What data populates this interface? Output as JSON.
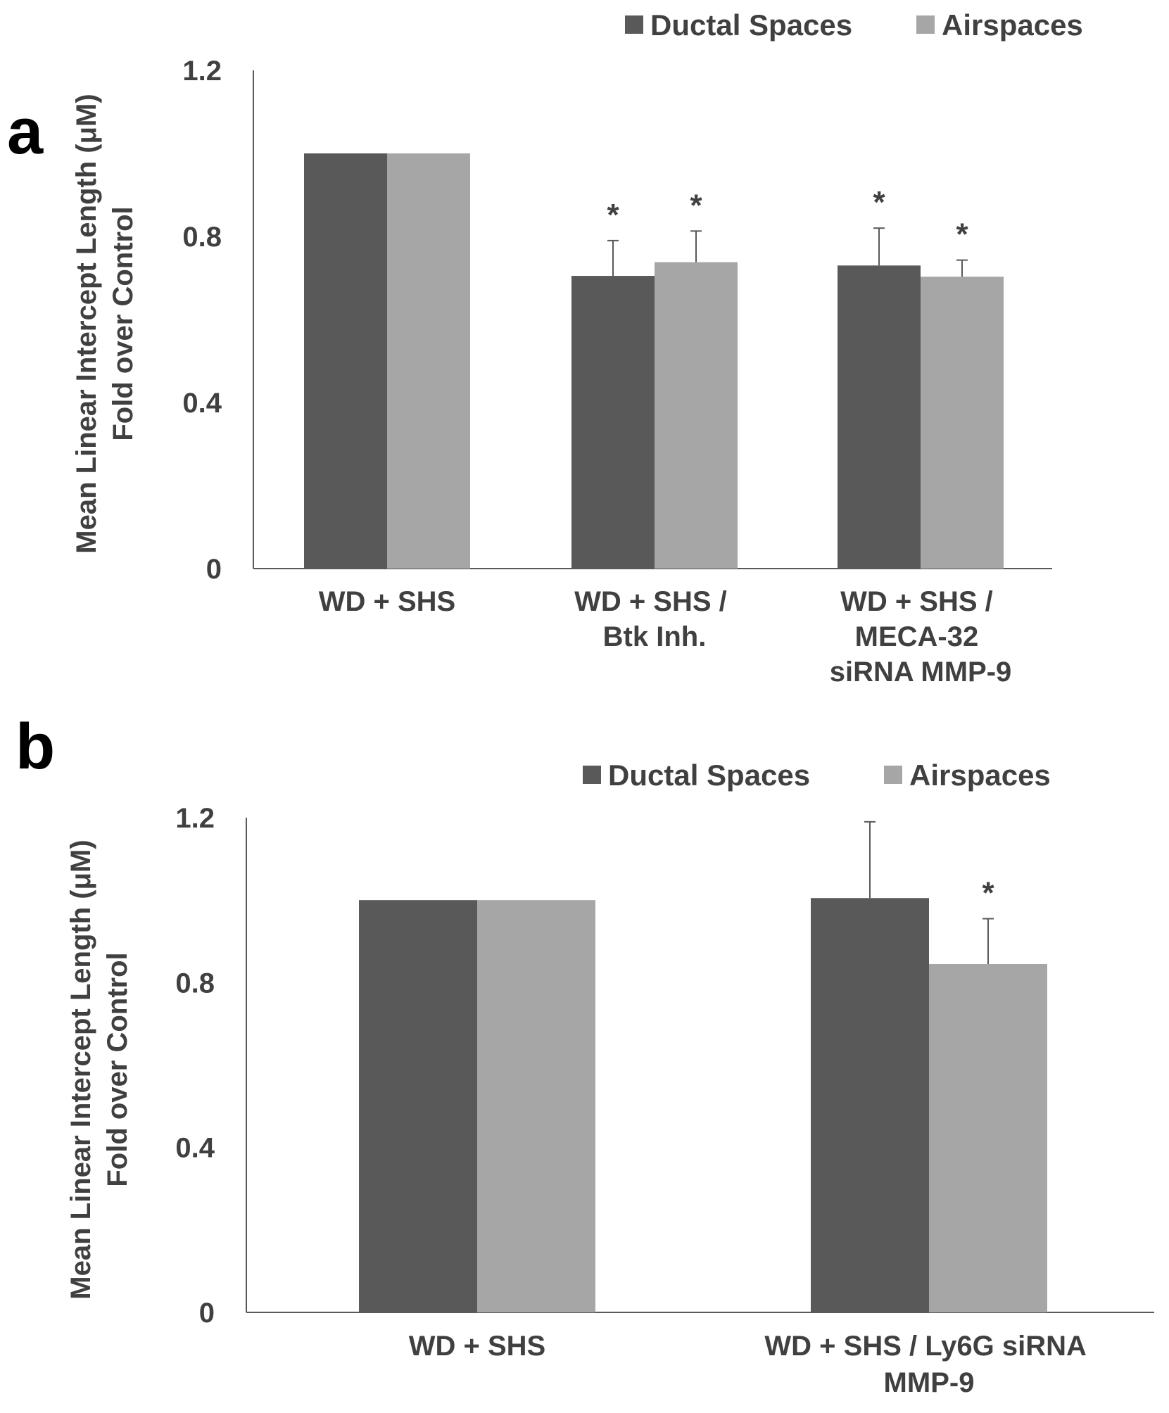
{
  "colors": {
    "ductal": "#595959",
    "airspace": "#a6a6a6",
    "axis": "#595959",
    "text": "#404040"
  },
  "chart_data": [
    {
      "panel": "a",
      "type": "bar",
      "ylabel": [
        "Mean Linear Intercept Length (μM)",
        "Fold over Control"
      ],
      "ylim": [
        0,
        1.2
      ],
      "yticks": [
        "0",
        "0.4",
        "0.8",
        "1.2"
      ],
      "tick_values": [
        0,
        0.4,
        0.8,
        1.2
      ],
      "legend": [
        "Ductal Spaces",
        "Airspaces"
      ],
      "categories": [
        [
          "WD + SHS"
        ],
        [
          "WD + SHS /",
          "Btk Inh."
        ],
        [
          "WD + SHS /",
          "MECA-32",
          "siRNA MMP-9"
        ]
      ],
      "series": [
        {
          "name": "Ductal Spaces",
          "values": [
            1.0,
            0.705,
            0.73
          ],
          "errors": [
            0,
            0.085,
            0.09
          ],
          "significance": [
            "",
            "*",
            "*"
          ]
        },
        {
          "name": "Airspaces",
          "values": [
            1.0,
            0.738,
            0.703
          ],
          "errors": [
            0,
            0.075,
            0.04
          ],
          "significance": [
            "",
            "*",
            "*"
          ]
        }
      ]
    },
    {
      "panel": "b",
      "type": "bar",
      "ylabel": [
        "Mean Linear Intercept Length (μM)",
        "Fold over Control"
      ],
      "ylim": [
        0,
        1.2
      ],
      "yticks": [
        "0",
        "0.4",
        "0.8",
        "1.2"
      ],
      "tick_values": [
        0,
        0.4,
        0.8,
        1.2
      ],
      "legend": [
        "Ductal Spaces",
        "Airspaces"
      ],
      "categories": [
        [
          "WD + SHS"
        ],
        [
          "WD + SHS / Ly6G siRNA",
          "MMP-9"
        ]
      ],
      "series": [
        {
          "name": "Ductal Spaces",
          "values": [
            1.0,
            1.005
          ],
          "errors": [
            0,
            0.185
          ],
          "significance": [
            "",
            ""
          ]
        },
        {
          "name": "Airspaces",
          "values": [
            1.0,
            0.845
          ],
          "errors": [
            0,
            0.11
          ],
          "significance": [
            "",
            "*"
          ]
        }
      ]
    }
  ]
}
